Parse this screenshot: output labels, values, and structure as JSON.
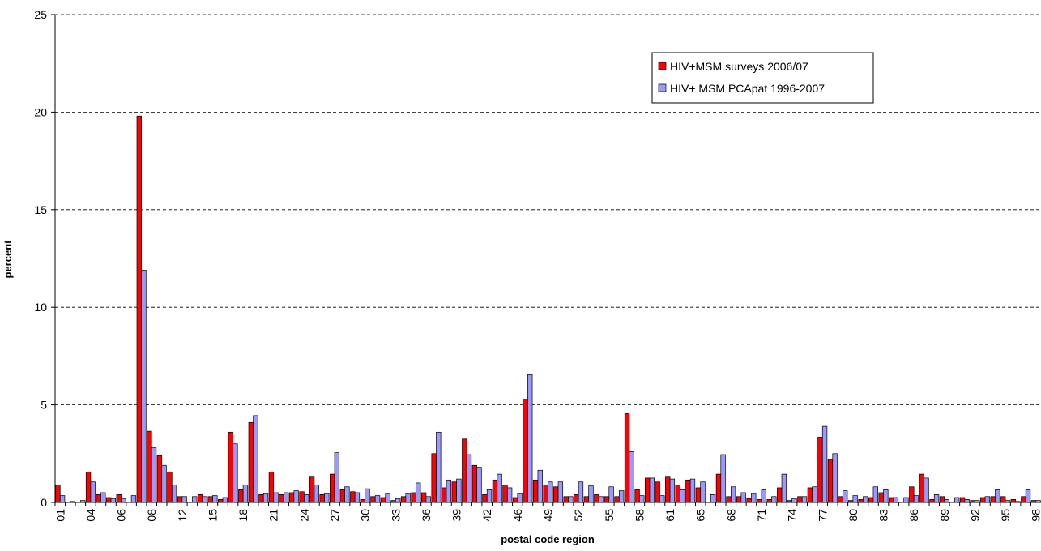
{
  "chart_data": {
    "type": "bar",
    "y_label": "percent",
    "x_label": "postal code region",
    "categories": [
      "01",
      null,
      null,
      "04",
      null,
      null,
      "06",
      null,
      null,
      "08",
      null,
      null,
      "12",
      null,
      null,
      "15",
      null,
      null,
      "18",
      null,
      null,
      "21",
      null,
      null,
      "24",
      null,
      null,
      "27",
      null,
      null,
      "30",
      null,
      null,
      "33",
      null,
      null,
      "36",
      null,
      null,
      "39",
      null,
      null,
      "42",
      null,
      null,
      "46",
      null,
      null,
      "49",
      null,
      null,
      "52",
      null,
      null,
      "55",
      null,
      null,
      "58",
      null,
      null,
      "61",
      null,
      null,
      "65",
      null,
      null,
      "68",
      null,
      null,
      "71",
      null,
      null,
      "74",
      null,
      null,
      "77",
      null,
      null,
      "80",
      null,
      null,
      "83",
      null,
      null,
      "86",
      null,
      null,
      "89",
      null,
      null,
      "92",
      null,
      null,
      "95",
      null,
      null,
      "98"
    ],
    "series": [
      {
        "name": "HIV+MSM surveys 2006/07",
        "color": "#ff0000",
        "values": [
          0.9,
          0,
          0,
          1.55,
          0.4,
          0.25,
          0.4,
          0,
          19.8,
          3.65,
          2.4,
          1.55,
          0.3,
          0,
          0.4,
          0.3,
          0.15,
          3.6,
          0.65,
          4.1,
          0.4,
          1.55,
          0.4,
          0.5,
          0.55,
          1.3,
          0.4,
          1.45,
          0.65,
          0.55,
          0.15,
          0.3,
          0.25,
          0.1,
          0.3,
          0.5,
          0.5,
          2.5,
          0.75,
          1.05,
          3.25,
          1.9,
          0.4,
          1.15,
          0.9,
          0.25,
          5.3,
          1.15,
          0.9,
          0.8,
          0.3,
          0.4,
          0.3,
          0.4,
          0.3,
          0.3,
          4.55,
          0.65,
          1.25,
          1.05,
          1.3,
          0.9,
          1.15,
          0.75,
          0,
          1.45,
          0.3,
          0.3,
          0.2,
          0.15,
          0.15,
          0.75,
          0.1,
          0.3,
          0.75,
          3.35,
          2.2,
          0.3,
          0.1,
          0.15,
          0.25,
          0.5,
          0.25,
          0,
          0.8,
          1.45,
          0.15,
          0.3,
          0,
          0.25,
          0.1,
          0.25,
          0.3,
          0.3,
          0.15,
          0.3,
          0.1
        ]
      },
      {
        "name": "HIV+ MSM PCApat 1996-2007",
        "color": "#9999ff",
        "values": [
          0.35,
          0.05,
          0.1,
          1.05,
          0.5,
          0.2,
          0.2,
          0.35,
          11.9,
          2.8,
          1.9,
          0.9,
          0.3,
          0.3,
          0.3,
          0.35,
          0.25,
          3.0,
          0.9,
          4.45,
          0.45,
          0.5,
          0.5,
          0.6,
          0.4,
          0.9,
          0.45,
          2.55,
          0.8,
          0.5,
          0.7,
          0.35,
          0.45,
          0.2,
          0.45,
          1.0,
          0.3,
          3.6,
          1.15,
          1.2,
          2.45,
          1.8,
          0.65,
          1.45,
          0.75,
          0.45,
          6.55,
          1.65,
          1.05,
          1.05,
          0.3,
          1.05,
          0.85,
          0.3,
          0.8,
          0.6,
          2.6,
          0.35,
          1.25,
          0.35,
          1.2,
          0.65,
          1.2,
          1.05,
          0.4,
          2.45,
          0.8,
          0.5,
          0.45,
          0.65,
          0.3,
          1.45,
          0.2,
          0.3,
          0.8,
          3.9,
          2.5,
          0.6,
          0.35,
          0.3,
          0.8,
          0.65,
          0.25,
          0.25,
          0.35,
          1.25,
          0.4,
          0.15,
          0.25,
          0.15,
          0.1,
          0.3,
          0.65,
          0.1,
          0.05,
          0.65,
          0.1
        ]
      }
    ],
    "ylim": [
      0,
      25
    ],
    "yticks": [
      0,
      5,
      10,
      15,
      20,
      25
    ],
    "grid": true,
    "legend": "upper-right"
  }
}
